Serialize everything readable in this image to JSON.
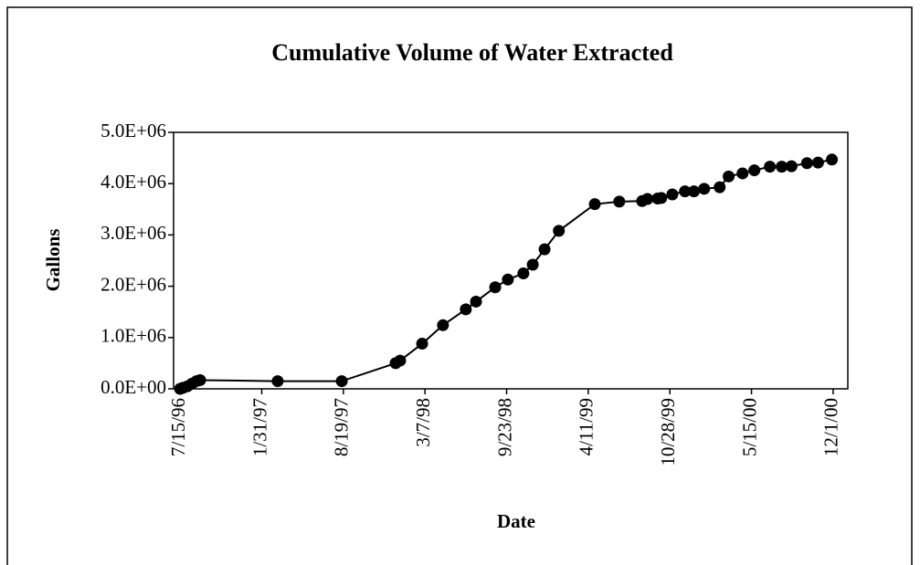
{
  "chart_data": {
    "type": "line",
    "title": "Cumulative Volume of Water Extracted",
    "x_label": "Date",
    "y_label": "Gallons",
    "x": [
      "7/15/96",
      "7/22/96",
      "8/2/96",
      "8/13/96",
      "8/24/96",
      "9/2/96",
      "3/11/97",
      "8/15/97",
      "12/25/97",
      "1/5/98",
      "2/28/98",
      "4/20/98",
      "6/15/98",
      "7/10/98",
      "8/26/98",
      "9/26/98",
      "11/3/98",
      "11/26/98",
      "12/25/98",
      "1/29/99",
      "4/27/99",
      "6/26/99",
      "8/21/99",
      "9/3/99",
      "9/28/99",
      "10/7/99",
      "11/3/99",
      "12/4/99",
      "12/26/99",
      "1/20/00",
      "2/27/00",
      "3/20/00",
      "4/23/00",
      "5/22/00",
      "6/29/00",
      "7/28/00",
      "8/21/00",
      "9/28/00",
      "10/25/00",
      "11/28/00"
    ],
    "series": [
      {
        "name": "Gallons",
        "color": "#000000",
        "values": [
          0,
          20000,
          50000,
          100000,
          150000,
          170000,
          150000,
          150000,
          500000,
          550000,
          880000,
          1240000,
          1550000,
          1700000,
          1980000,
          2130000,
          2250000,
          2420000,
          2720000,
          3080000,
          3600000,
          3650000,
          3660000,
          3700000,
          3710000,
          3720000,
          3790000,
          3850000,
          3850000,
          3900000,
          3930000,
          4140000,
          4200000,
          4260000,
          4330000,
          4330000,
          4340000,
          4400000,
          4410000,
          4470000
        ]
      }
    ],
    "xlim": [
      "6/29/96",
      "1/6/01"
    ],
    "xticks": [
      "7/15/96",
      "1/31/97",
      "8/19/97",
      "3/7/98",
      "9/23/98",
      "4/11/99",
      "10/28/99",
      "5/15/00",
      "12/1/00"
    ],
    "ylim": [
      0,
      5000000
    ],
    "yticks": [
      {
        "value": 0,
        "label": "0.0E+00"
      },
      {
        "value": 1000000,
        "label": "1.0E+06"
      },
      {
        "value": 2000000,
        "label": "2.0E+06"
      },
      {
        "value": 3000000,
        "label": "3.0E+06"
      },
      {
        "value": 4000000,
        "label": "4.0E+06"
      },
      {
        "value": 5000000,
        "label": "5.0E+06"
      }
    ],
    "grid": false
  }
}
